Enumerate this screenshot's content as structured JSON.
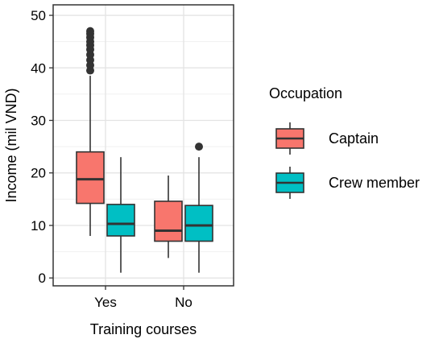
{
  "chart_data": {
    "type": "boxplot",
    "title": "",
    "xlabel": "Training courses",
    "ylabel": "Income (mil VND)",
    "categories": [
      "Yes",
      "No"
    ],
    "ylim": [
      -1.5,
      52
    ],
    "yticks": [
      0,
      10,
      20,
      30,
      40,
      50
    ],
    "grid": true,
    "legend": {
      "title": "Occupation",
      "position": "right"
    },
    "series": [
      {
        "name": "Captain",
        "color": "#F8766D",
        "boxes": [
          {
            "category": "Yes",
            "min": 8,
            "q1": 14.2,
            "median": 18.8,
            "q3": 24,
            "max": 38.5,
            "outliers": [
              39.5,
              40.5,
              41.5,
              42.5,
              43.5,
              44.3,
              45,
              45.8,
              46.5,
              47
            ]
          },
          {
            "category": "No",
            "min": 3.8,
            "q1": 7,
            "median": 9,
            "q3": 14.6,
            "max": 19.5,
            "outliers": []
          }
        ]
      },
      {
        "name": "Crew member",
        "color": "#00BFC4",
        "boxes": [
          {
            "category": "Yes",
            "min": 1,
            "q1": 8,
            "median": 10.3,
            "q3": 14,
            "max": 23,
            "outliers": []
          },
          {
            "category": "No",
            "min": 1,
            "q1": 7,
            "median": 10,
            "q3": 13.8,
            "max": 23,
            "outliers": [
              25
            ]
          }
        ]
      }
    ]
  }
}
